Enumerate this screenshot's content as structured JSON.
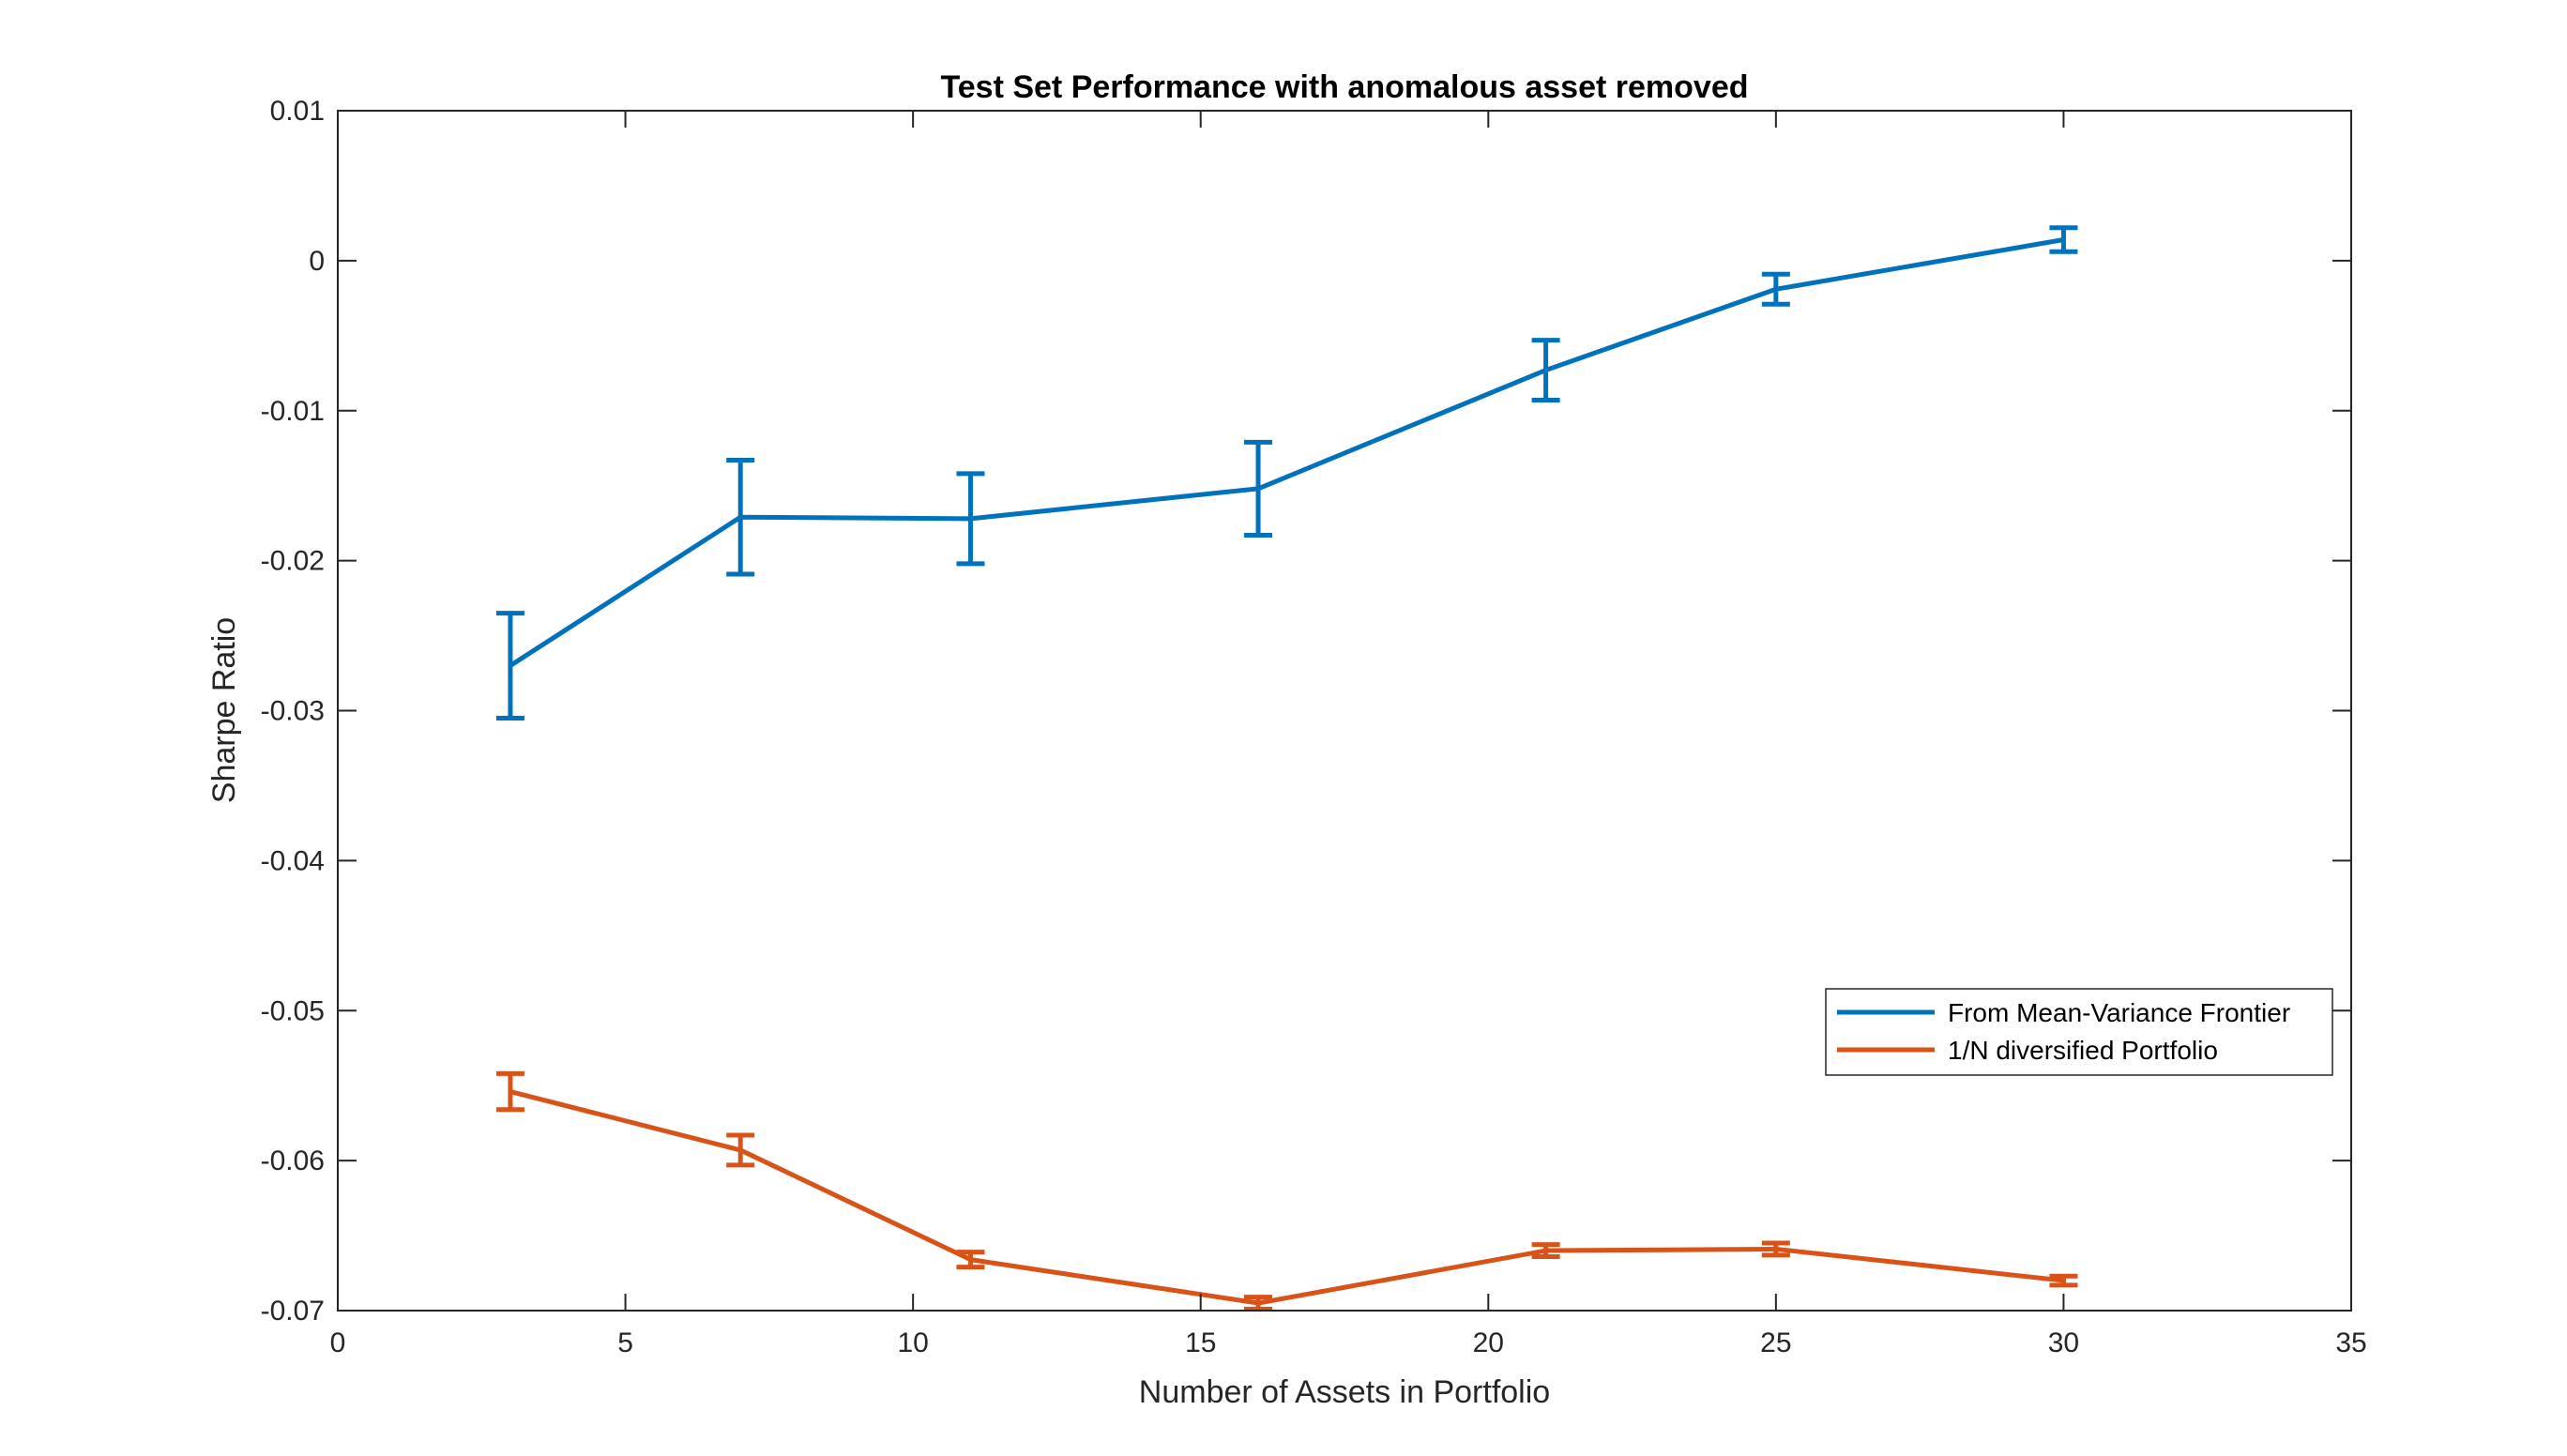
{
  "chart_data": {
    "type": "line",
    "title": "Test Set Performance with anomalous asset removed",
    "xlabel": "Number of Assets in Portfolio",
    "ylabel": "Sharpe Ratio",
    "xlim": [
      0,
      35
    ],
    "ylim": [
      -0.07,
      0.01
    ],
    "xticks": [
      0,
      5,
      10,
      15,
      20,
      25,
      30,
      35
    ],
    "xtick_labels": [
      "0",
      "5",
      "10",
      "15",
      "20",
      "25",
      "30",
      "35"
    ],
    "yticks": [
      0.01,
      0,
      -0.01,
      -0.02,
      -0.03,
      -0.04,
      -0.05,
      -0.06,
      -0.07
    ],
    "ytick_labels": [
      "0.01",
      "0",
      "-0.01",
      "-0.02",
      "-0.03",
      "-0.04",
      "-0.05",
      "-0.06",
      "-0.07"
    ],
    "grid": false,
    "legend_position": "bottom-right",
    "x": [
      3,
      7,
      11,
      16,
      21,
      25,
      30
    ],
    "series": [
      {
        "name": "From Mean-Variance Frontier",
        "color": "#0072BD",
        "y": [
          -0.027,
          -0.0171,
          -0.0172,
          -0.0152,
          -0.0073,
          -0.0019,
          0.0014
        ],
        "error": [
          0.0035,
          0.0038,
          0.003,
          0.0031,
          0.002,
          0.001,
          0.0008
        ]
      },
      {
        "name": "1/N diversified Portfolio",
        "color": "#D95319",
        "y": [
          -0.0554,
          -0.0593,
          -0.0666,
          -0.0695,
          -0.066,
          -0.0659,
          -0.068
        ],
        "error": [
          0.0012,
          0.001,
          0.0005,
          0.0004,
          0.0004,
          0.0004,
          0.0003
        ]
      }
    ]
  }
}
